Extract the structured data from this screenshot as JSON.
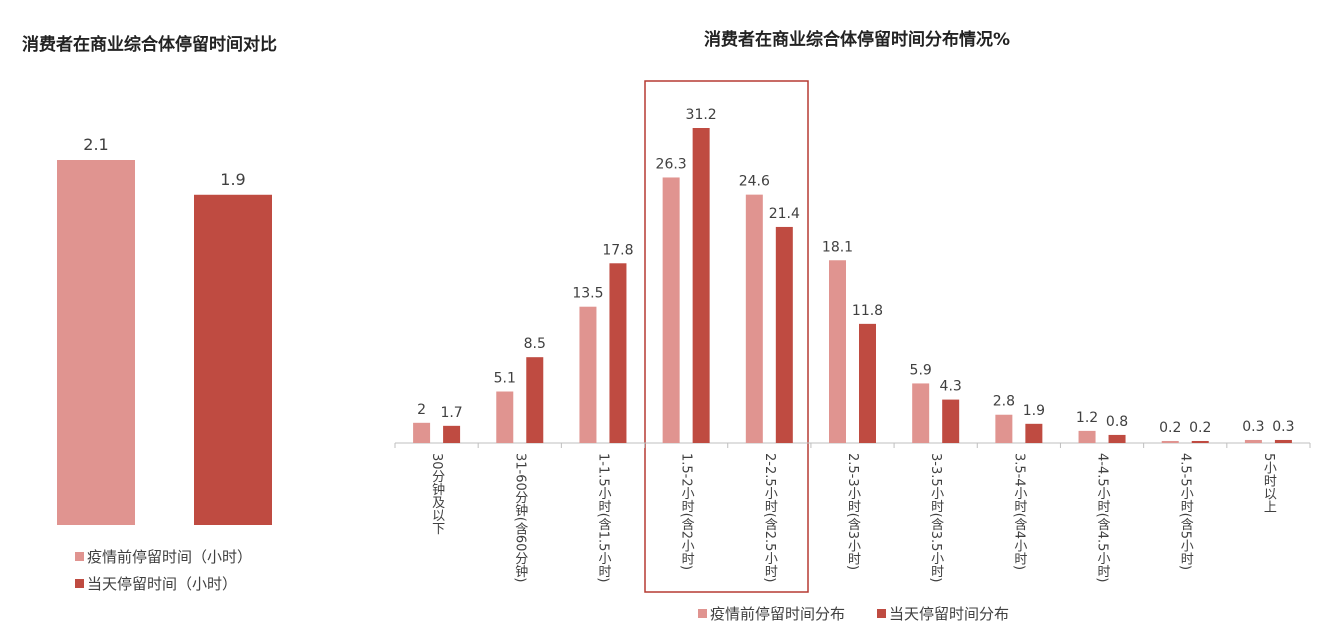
{
  "chart_data": [
    {
      "type": "bar",
      "title": "消费者在商业综合体停留时间对比",
      "categories": [
        null
      ],
      "series": [
        {
          "name": "疫情前停留时间（小时）",
          "color": "#e09490",
          "values": [
            2.1
          ]
        },
        {
          "name": "当天停留时间（小时）",
          "color": "#bf4b41",
          "values": [
            1.9
          ]
        }
      ],
      "ylim": [
        0,
        2.1
      ]
    },
    {
      "type": "bar",
      "title": "消费者在商业综合体停留时间分布情况%",
      "categories": [
        "30分钟及以下",
        "31-60分钟(含60分钟)",
        "1-1.5小时(含1.5小时)",
        "1.5-2小时(含2小时)",
        "2-2.5小时(含2.5小时)",
        "2.5-3小时(含3小时)",
        "3-3.5小时(含3.5小时)",
        "3.5-4小时(含4小时)",
        "4-4.5小时(含4.5小时)",
        "4.5-5小时(含5小时)",
        "5小时以上"
      ],
      "series": [
        {
          "name": "疫情前停留时间分布",
          "color": "#e09490",
          "values": [
            2,
            5.1,
            13.5,
            26.3,
            24.6,
            18.1,
            5.9,
            2.8,
            1.2,
            0.2,
            0.3
          ]
        },
        {
          "name": "当天停留时间分布",
          "color": "#bf4b41",
          "values": [
            1.7,
            8.5,
            17.8,
            31.2,
            21.4,
            11.8,
            4.3,
            1.9,
            0.8,
            0.2,
            0.3
          ]
        }
      ],
      "ylim": [
        0,
        31.2
      ]
    }
  ]
}
